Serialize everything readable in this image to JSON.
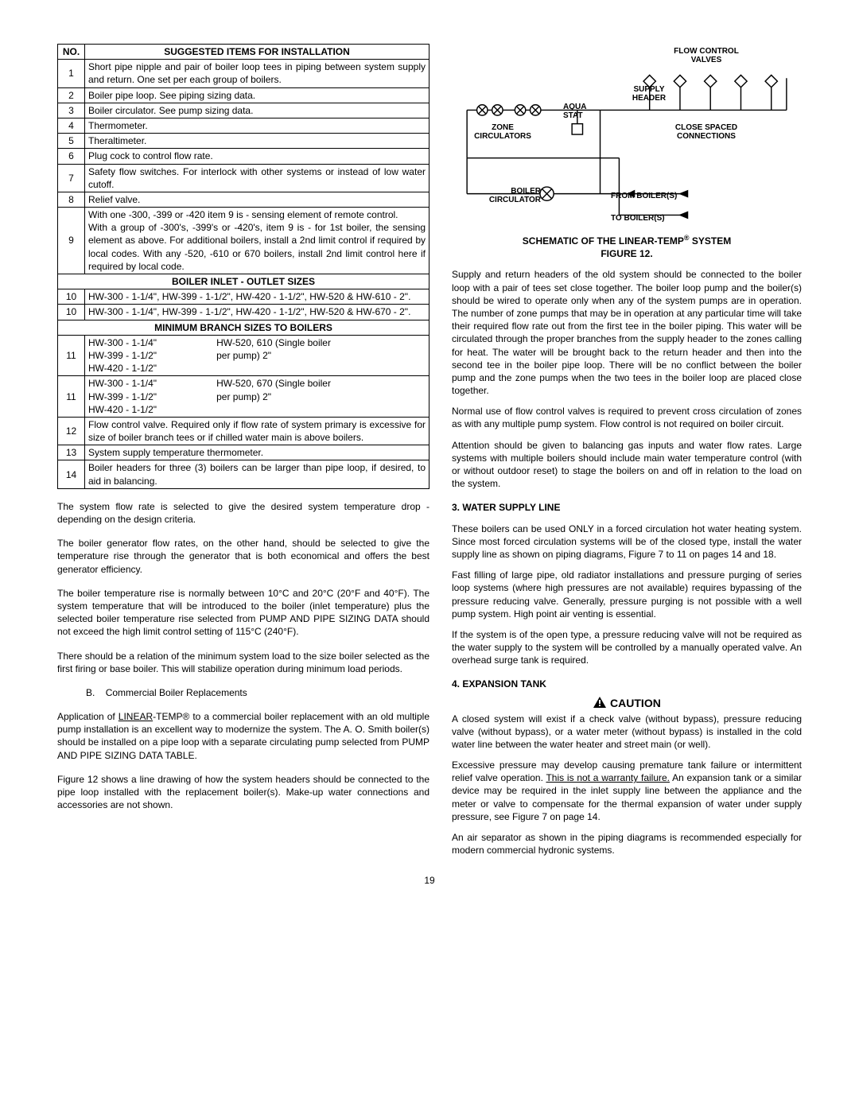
{
  "table": {
    "header_no": "NO.",
    "header_desc": "SUGGESTED ITEMS FOR INSTALLATION",
    "rows": [
      {
        "no": "1",
        "desc": "Short pipe nipple and pair of boiler loop tees in piping between system supply and return. One set per each group of boilers."
      },
      {
        "no": "2",
        "desc": "Boiler pipe loop. See piping sizing data."
      },
      {
        "no": "3",
        "desc": "Boiler circulator. See pump sizing data."
      },
      {
        "no": "4",
        "desc": "Thermometer."
      },
      {
        "no": "5",
        "desc": "Theraltimeter."
      },
      {
        "no": "6",
        "desc": "Plug cock to control flow rate."
      },
      {
        "no": "7",
        "desc": "Safety flow switches. For interlock with other systems or instead of low water cutoff."
      },
      {
        "no": "8",
        "desc": "Relief valve."
      },
      {
        "no": "9",
        "desc": "With one -300, -399 or -420 item 9 is - sensing element of remote control.\nWith a group of -300's, -399's or -420's, item 9 is - for 1st boiler, the sensing element as above. For additional boilers, install a 2nd limit control if required by local codes. With any -520, -610 or 670 boilers, install 2nd limit control here if required by local code."
      }
    ],
    "sub1": "BOILER INLET - OUTLET SIZES",
    "rows2": [
      {
        "no": "10",
        "desc": "HW-300 - 1-1/4\", HW-399 - 1-1/2\", HW-420 - 1-1/2\", HW-520 & HW-610 - 2\"."
      },
      {
        "no": "10",
        "desc": "HW-300 - 1-1/4\", HW-399 - 1-1/2\", HW-420 - 1-1/2\", HW-520 & HW-670 - 2\"."
      }
    ],
    "sub2": "MINIMUM BRANCH SIZES TO BOILERS",
    "rows3a": {
      "no": "11",
      "left1": "HW-300 - 1-1/4\"",
      "left2": "HW-399 - 1-1/2\"",
      "left3": "HW-420 - 1-1/2\"",
      "right1": "HW-520, 610 (Single boiler",
      "right2": "per pump) 2\""
    },
    "rows3b": {
      "no": "11",
      "left1": "HW-300 - 1-1/4\"",
      "left2": "HW-399 - 1-1/2\"",
      "left3": "HW-420 - 1-1/2\"",
      "right1": "HW-520, 670 (Single boiler",
      "right2": "per pump) 2\""
    },
    "rows4": [
      {
        "no": "12",
        "desc": "Flow control valve. Required only if flow rate of system primary is excessive for size of boiler branch tees or if chilled water main is above boilers."
      },
      {
        "no": "13",
        "desc": "System supply temperature thermometer."
      },
      {
        "no": "14",
        "desc": "Boiler headers for three (3) boilers can be larger than pipe loop, if desired, to aid in balancing."
      }
    ]
  },
  "left_paragraphs": {
    "p1": "The system flow rate is selected to give the desired system temperature drop - depending on the design criteria.",
    "p2": "The boiler generator flow rates, on the other hand, should be selected to give the temperature rise through the generator that is both economical and offers the best generator efficiency.",
    "p3": "The boiler temperature rise is normally between 10°C and 20°C (20°F and 40°F). The system temperature that will be introduced to the boiler (inlet temperature) plus the selected boiler temperature rise selected from PUMP AND PIPE SIZING DATA should not exceed the high limit control setting of 115°C (240°F).",
    "p4": "There should be a relation of the minimum system load to the size boiler selected as the first firing or base boiler. This will stabilize operation during minimum load periods.",
    "b_letter": "B.",
    "b_text": "Commercial Boiler Replacements",
    "p5a": "Application of ",
    "p5u": "LINEAR",
    "p5b": "-TEMP® to a commercial boiler replacement with an old multiple pump installation is an excellent way to modernize the system. The A. O. Smith boiler(s) should be installed on a pipe loop with a separate circulating pump selected from PUMP AND PIPE SIZING DATA TABLE.",
    "p6": "Figure 12 shows a line drawing of how the system headers should be connected to the pipe loop installed with the replacement boiler(s). Make-up water connections and accessories are not shown."
  },
  "schematic": {
    "flow_control_valves": "FLOW CONTROL\nVALVES",
    "supply_header": "SUPPLY\nHEADER",
    "aqua_stat": "AQUA\nSTAT",
    "zone_circulators": "ZONE\nCIRCULATORS",
    "close_spaced": "CLOSE SPACED\nCONNECTIONS",
    "boiler_circulator": "BOILER\nCIRCULATOR",
    "from_boilers": "FROM BOILER(S)",
    "to_boilers": "TO BOILER(S)",
    "caption_a": "SCHEMATIC OF THE LINEAR-TEMP",
    "caption_sup": "®",
    "caption_b": " SYSTEM",
    "caption_c": "FIGURE 12."
  },
  "right_paragraphs": {
    "p1": "Supply and return headers of the old system should be connected to the boiler loop with a pair of tees set close together. The boiler loop pump and the boiler(s) should be wired to operate only when any of the system pumps are in operation. The number of zone pumps that may be in operation at any particular time will take their required flow rate out from the first tee in the boiler piping. This water will be circulated through the proper branches from the supply header to the zones calling for heat. The water will be brought back to the return header and then into the second tee in the boiler pipe loop. There will be no conflict between the boiler pump and the zone pumps when the two tees in the boiler loop are placed close together.",
    "p2": "Normal use of flow control valves is required to prevent cross circulation of zones as with any multiple pump system. Flow control is not required on boiler circuit.",
    "p3": "Attention should be given to balancing gas inputs and water flow rates. Large systems with multiple boilers should include main water temperature control (with or without outdoor reset) to stage the boilers on and off in relation to the load on the system.",
    "h3": "3. WATER SUPPLY LINE",
    "p4": "These boilers can be used ONLY in a forced circulation hot water heating system. Since most forced circulation systems will be of the closed type, install the water supply line as shown on piping diagrams, Figure 7 to 11 on pages 14 and 18.",
    "p5": "Fast filling of large pipe, old radiator installations and pressure purging of series loop systems (where high pressures are not available) requires bypassing of the pressure reducing valve. Generally, pressure purging is not possible with a well pump system. High point air venting is essential.",
    "p6": "If the system is of the open type, a pressure reducing valve will not be required as the water supply to the system will be controlled by a manually operated valve. An overhead surge tank is required.",
    "h4": "4. EXPANSION TANK",
    "caution": "CAUTION",
    "p7": "A closed system will exist if a check valve (without bypass), pressure reducing valve (without bypass), or a water meter (without bypass) is installed in the cold water line between the water heater and street main (or well).",
    "p8a": "Excessive pressure may develop causing premature tank failure or intermittent relief valve operation. ",
    "p8u": "This is not a warranty failure.",
    "p8b": "  An expansion tank or a similar device may be required in the inlet supply line between the appliance and the meter or valve to compensate for the thermal expansion of water under supply pressure, see Figure 7 on page 14.",
    "p9": "An air separator as shown in the piping diagrams is recommended especially for modern commercial hydronic systems."
  },
  "page_number": "19"
}
